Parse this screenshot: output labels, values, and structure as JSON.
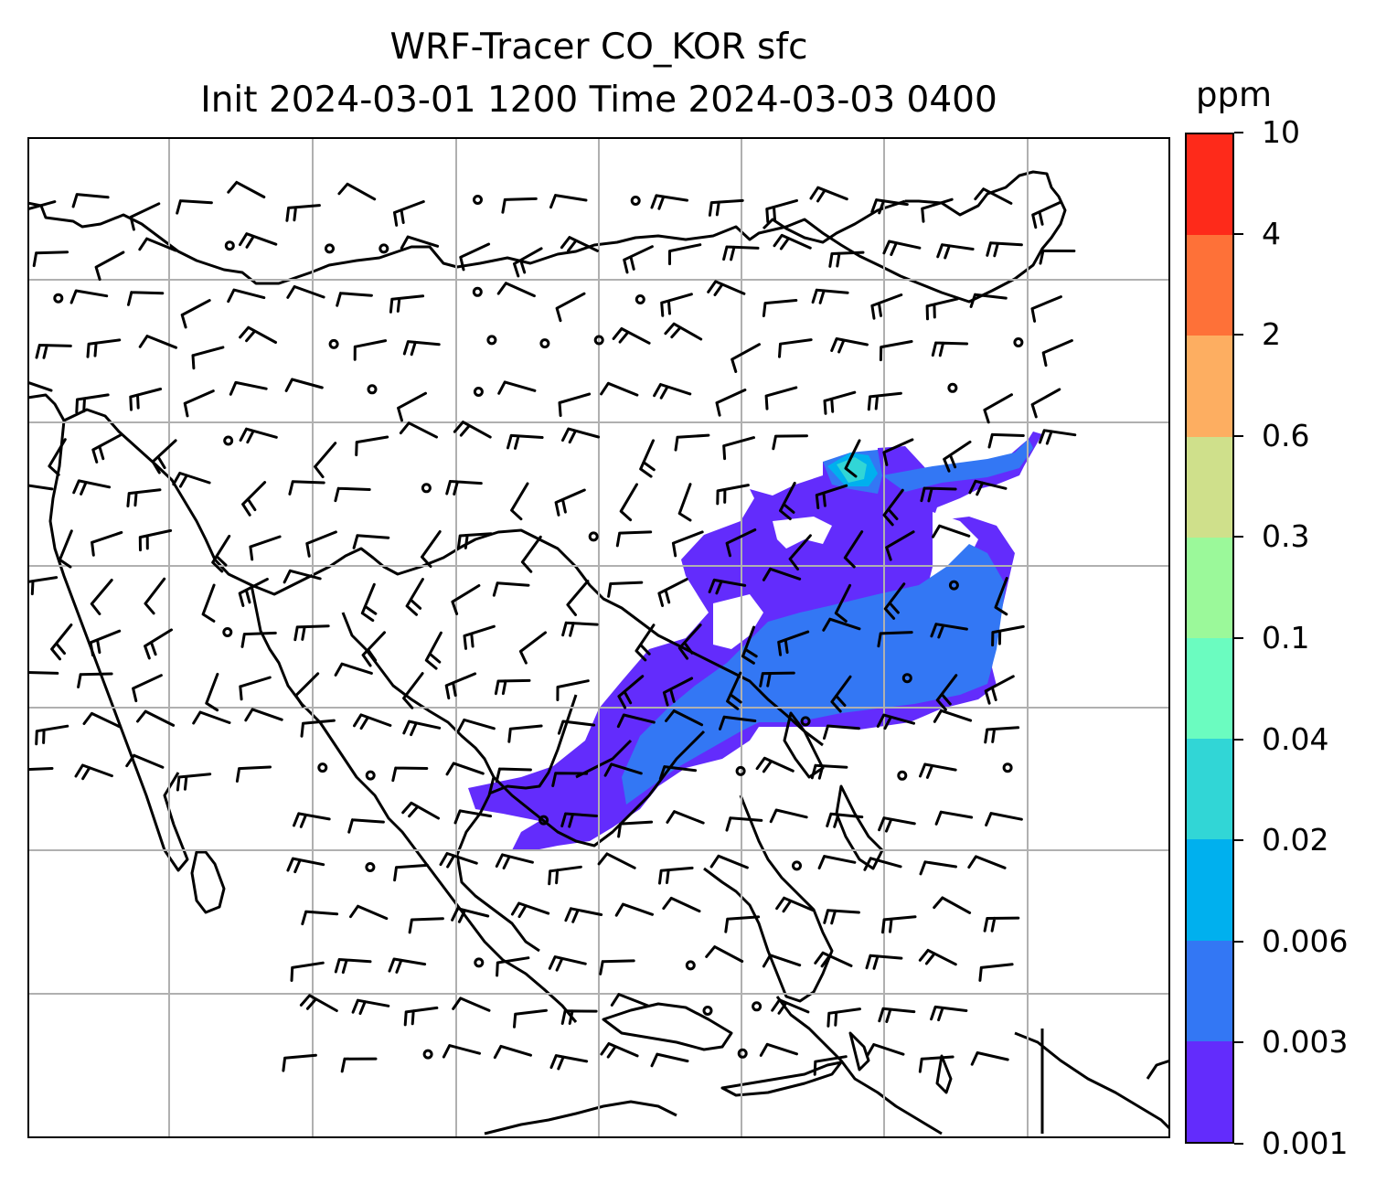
{
  "title": {
    "line1": "WRF-Tracer CO_KOR sfc",
    "line2": "Init 2024-03-01 1200 Time 2024-03-03 0400"
  },
  "colorbar": {
    "unit": "ppm",
    "labels": [
      "10",
      "4",
      "2",
      "0.6",
      "0.3",
      "0.1",
      "0.04",
      "0.02",
      "0.006",
      "0.003",
      "0.001"
    ],
    "colors_top_to_bottom": [
      "#fe2a1a",
      "#fe7138",
      "#fdae61",
      "#cfe08b",
      "#9bf99a",
      "#6bfcc0",
      "#31d6d6",
      "#00b0ee",
      "#3377f4",
      "#632cfc"
    ]
  },
  "map": {
    "style": "contour-plume with wind barbs over coastline map",
    "coast_color": "#000000",
    "grid_color": "#b0b0b0",
    "plume_levels": [
      "0.001",
      "0.003",
      "0.006",
      "0.02"
    ]
  }
}
